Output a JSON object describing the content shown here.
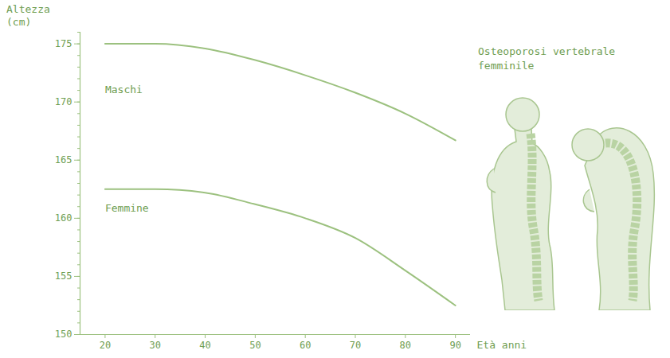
{
  "chart_data": {
    "type": "line",
    "y_label": "Altezza (cm)",
    "x_label": "Età anni",
    "annotation": "Osteoporosi vertebrale femminile",
    "x": [
      20,
      30,
      40,
      50,
      60,
      70,
      80,
      90
    ],
    "series": [
      {
        "name": "Maschi",
        "color": "#9cc17f",
        "values": [
          175,
          175,
          174.6,
          173.6,
          172.3,
          170.8,
          169,
          166.7
        ]
      },
      {
        "name": "Femmine",
        "color": "#9cc17f",
        "values": [
          162.5,
          162.5,
          162.2,
          161.2,
          160,
          158.3,
          155.5,
          152.5
        ]
      }
    ],
    "xlim": [
      15,
      93
    ],
    "ylim": [
      150,
      176
    ],
    "xticks": [
      20,
      30,
      40,
      50,
      60,
      70,
      80,
      90
    ],
    "yticks": [
      150,
      155,
      160,
      165,
      170,
      175
    ]
  }
}
